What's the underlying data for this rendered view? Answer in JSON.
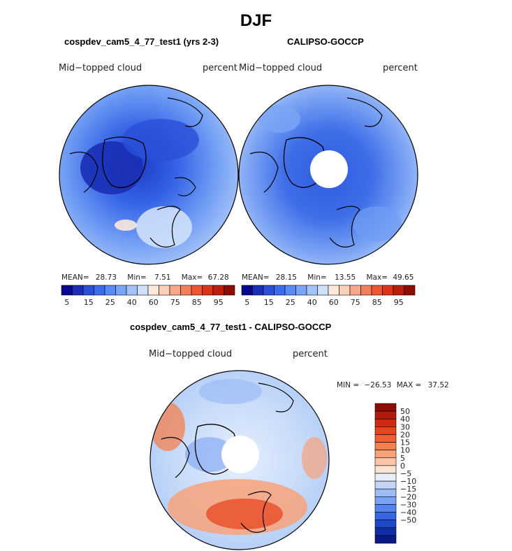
{
  "figure": {
    "title": "DJF"
  },
  "chart_data": [
    {
      "type": "heatmap",
      "projection": "north-polar-stereographic",
      "title": "cospdev_cam5_4_77_test1 (yrs 2-3)",
      "left_label": "Mid−topped cloud",
      "right_label": "percent",
      "stats": {
        "mean_label": "MEAN=",
        "mean": "28.73",
        "min_label": "Min=",
        "min": "7.51",
        "max_label": "Max=",
        "max": "67.28"
      },
      "colorbar": {
        "colors": [
          "#08088f",
          "#1a2fb5",
          "#2a4fd8",
          "#3b6cf0",
          "#5a8af5",
          "#7aa5f5",
          "#a3c2f7",
          "#cfe0fb",
          "#fde9dc",
          "#fcd0b8",
          "#f9a88a",
          "#f57f5a",
          "#ee5530",
          "#db3418",
          "#bb1e0d",
          "#8f0c05"
        ],
        "ticks": [
          "5",
          "15",
          "25",
          "40",
          "60",
          "75",
          "85",
          "95"
        ]
      }
    },
    {
      "type": "heatmap",
      "projection": "north-polar-stereographic",
      "title": "CALIPSO-GOCCP",
      "left_label": "Mid−topped cloud",
      "right_label": "percent",
      "stats": {
        "mean_label": "MEAN=",
        "mean": "28.15",
        "min_label": "Min=",
        "min": "13.55",
        "max_label": "Max=",
        "max": "49.65"
      },
      "colorbar": {
        "colors": [
          "#08088f",
          "#1a2fb5",
          "#2a4fd8",
          "#3b6cf0",
          "#5a8af5",
          "#7aa5f5",
          "#a3c2f7",
          "#cfe0fb",
          "#fde9dc",
          "#fcd0b8",
          "#f9a88a",
          "#f57f5a",
          "#ee5530",
          "#db3418",
          "#bb1e0d",
          "#8f0c05"
        ],
        "ticks": [
          "5",
          "15",
          "25",
          "40",
          "60",
          "75",
          "85",
          "95"
        ]
      }
    },
    {
      "type": "heatmap",
      "projection": "north-polar-stereographic",
      "title": "cospdev_cam5_4_77_test1 - CALIPSO-GOCCP",
      "left_label": "Mid−topped cloud",
      "right_label": "percent",
      "stats": {
        "min_label": "MIN =",
        "min": "−26.53",
        "max_label": "MAX =",
        "max": "37.52"
      },
      "colorbar": {
        "orientation": "vertical",
        "colors": [
          "#8f0c05",
          "#b21a0b",
          "#d02b12",
          "#e8451f",
          "#f25f33",
          "#f5804f",
          "#f8a27a",
          "#fbc6a8",
          "#fde3d3",
          "#e6effb",
          "#c3d6f8",
          "#9bbcf5",
          "#7aa2f2",
          "#5683ed",
          "#3666e4",
          "#1d49c9",
          "#0f2fa8",
          "#081a86"
        ],
        "ticks": [
          "50",
          "40",
          "30",
          "20",
          "15",
          "10",
          "5",
          "0",
          "−5",
          "−10",
          "−15",
          "−20",
          "−30",
          "−40",
          "−50"
        ]
      }
    }
  ]
}
